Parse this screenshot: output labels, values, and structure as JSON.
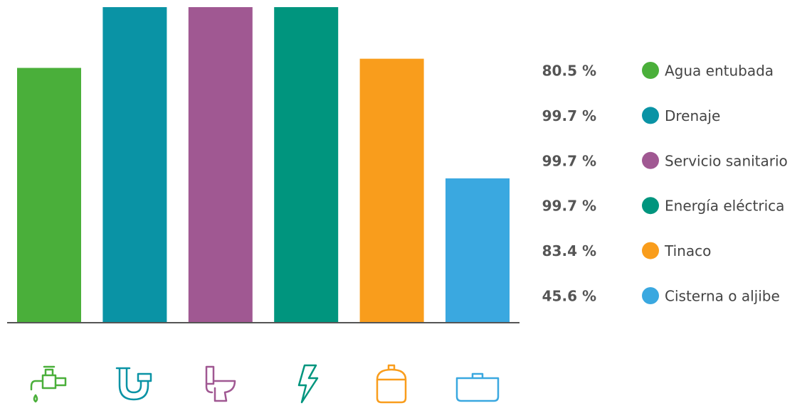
{
  "chart_data": {
    "type": "bar",
    "categories": [
      "Agua entubada",
      "Drenaje",
      "Servicio sanitario",
      "Energía eléctrica",
      "Tinaco",
      "Cisterna o aljibe"
    ],
    "values": [
      80.5,
      99.7,
      99.7,
      99.7,
      83.4,
      45.6
    ],
    "value_labels": [
      "80.5 %",
      "99.7 %",
      "99.7 %",
      "99.7 %",
      "83.4 %",
      "45.6 %"
    ],
    "colors": [
      "#4aaf3a",
      "#0a93a5",
      "#a05892",
      "#00957e",
      "#f99d1c",
      "#3aa8e0"
    ]
  }
}
